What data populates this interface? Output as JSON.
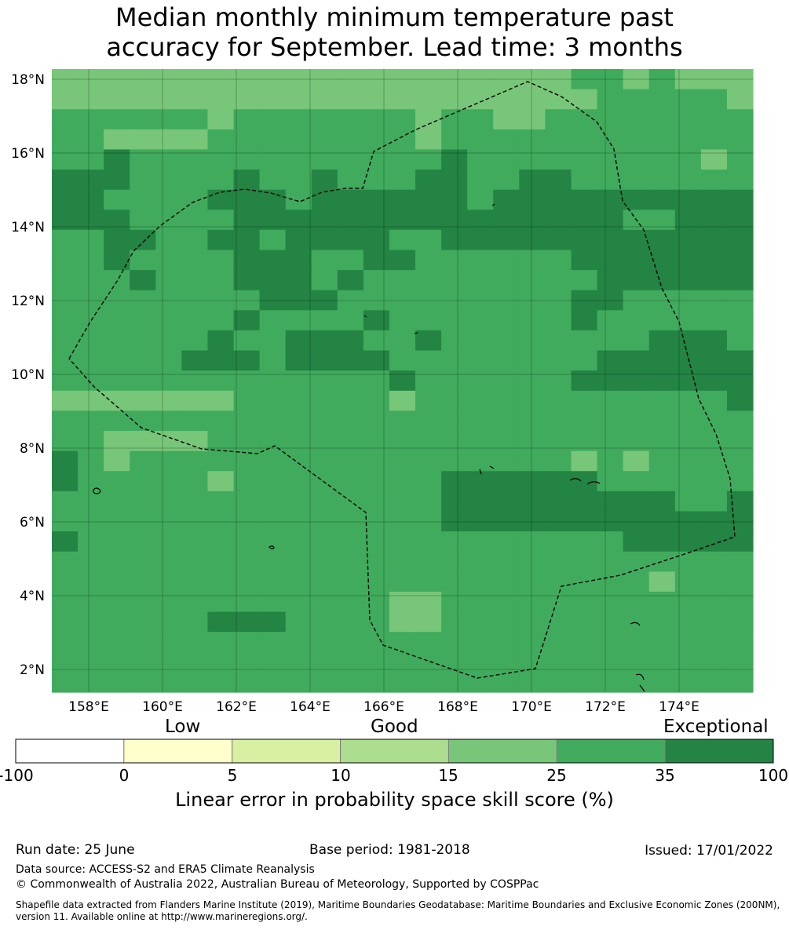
{
  "title": {
    "line1": "Median monthly minimum temperature past",
    "line2": "accuracy for September. Lead time: 3 months"
  },
  "map": {
    "lat_labels": [
      "18°N",
      "16°N",
      "14°N",
      "12°N",
      "10°N",
      "8°N",
      "6°N",
      "4°N",
      "2°N"
    ],
    "lon_labels": [
      "158°E",
      "160°E",
      "162°E",
      "164°E",
      "166°E",
      "168°E",
      "170°E",
      "172°E",
      "174°E"
    ],
    "grid_colors": [
      "#ffffff",
      "#ffffcc",
      "#d9f0a3",
      "#addd8e",
      "#78c679",
      "#41ab5d",
      "#238443"
    ],
    "grid_rows_top_to_bottom": [
      "444444444444444444445545444",
      "444444444444444444444555554",
      "555555455555554554455555555",
      "554444555555554555555555555",
      "556555555555555655555555545",
      "666555565565556655665555555",
      "665555666566666656666666666",
      "666555566666666666666655666",
      "556655665666655666666666666",
      "556555566655665555556666666",
      "555655566656555555555666666",
      "555555556665555555556655555",
      "555555565555655555556555555",
      "555555655666556555555556665",
      "555556665666655555555666666",
      "555555555555565555556666666",
      "444444455555545555555555556",
      "555555555555555555555555555",
      "554444555555555555555555555",
      "654555555555555555554545555",
      "655555455555555666666555555",
      "555555555555555666666666556",
      "555555555555555666666666666",
      "655555555555555555555566666",
      "555555555555555555555555555",
      "555555555555555555555554555",
      "555555555555544555555555555",
      "555555666555544555555555555",
      "555555555555555555555555555",
      "555555555555555555555555555",
      "555555555555555555555555555"
    ]
  },
  "colorbar": {
    "words": [
      "Low",
      "Good",
      "Exceptional"
    ],
    "ticks": [
      "-100",
      "0",
      "5",
      "10",
      "15",
      "25",
      "35",
      "100"
    ],
    "colors": [
      "#ffffff",
      "#ffffcc",
      "#d9f0a3",
      "#addd8e",
      "#78c679",
      "#41ab5d",
      "#238443"
    ],
    "label": "Linear error in probability space skill score (%)"
  },
  "footer": {
    "run_date": "Run date: 25 June",
    "base_period": "Base period: 1981-2018",
    "issued": "Issued: 17/01/2022",
    "data_source": "Data source: ACCESS-S2 and ERA5 Climate Reanalysis",
    "copyright": "© Commonwealth of Australia 2022, Australian Bureau of Meteorology, Supported by COSPPac",
    "shapefile_line1": "Shapefile data extracted from Flanders Marine Institute (2019), Maritime Boundaries Geodatabase: Maritime Boundaries and Exclusive Economic Zones (200NM),",
    "shapefile_line2": "version 11. Available online at http://www.marineregions.org/."
  }
}
